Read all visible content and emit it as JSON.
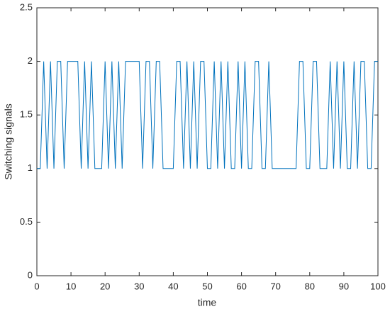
{
  "chart_data": {
    "type": "line",
    "xlabel": "time",
    "ylabel": "Switching signals",
    "x": [
      0,
      1,
      2,
      3,
      4,
      5,
      6,
      7,
      8,
      9,
      10,
      11,
      12,
      13,
      14,
      15,
      16,
      17,
      18,
      19,
      20,
      21,
      22,
      23,
      24,
      25,
      26,
      27,
      28,
      29,
      30,
      31,
      32,
      33,
      34,
      35,
      36,
      37,
      38,
      39,
      40,
      41,
      42,
      43,
      44,
      45,
      46,
      47,
      48,
      49,
      50,
      51,
      52,
      53,
      54,
      55,
      56,
      57,
      58,
      59,
      60,
      61,
      62,
      63,
      64,
      65,
      66,
      67,
      68,
      69,
      70,
      71,
      72,
      73,
      74,
      75,
      76,
      77,
      78,
      79,
      80,
      81,
      82,
      83,
      84,
      85,
      86,
      87,
      88,
      89,
      90,
      91,
      92,
      93,
      94,
      95,
      96,
      97,
      98,
      99,
      100
    ],
    "series": [
      {
        "name": "Switching signal",
        "color": "#0072bd",
        "values": [
          1,
          1,
          2,
          1,
          2,
          1,
          2,
          2,
          1,
          2,
          2,
          2,
          2,
          1,
          2,
          1,
          2,
          1,
          1,
          1,
          2,
          1,
          2,
          1,
          2,
          1,
          2,
          2,
          2,
          2,
          2,
          1,
          2,
          2,
          1,
          2,
          2,
          1,
          1,
          1,
          1,
          2,
          2,
          1,
          2,
          1,
          2,
          1,
          2,
          2,
          1,
          1,
          2,
          1,
          2,
          1,
          2,
          1,
          1,
          2,
          1,
          2,
          1,
          1,
          2,
          2,
          1,
          1,
          2,
          1,
          1,
          1,
          1,
          1,
          1,
          1,
          1,
          2,
          2,
          1,
          1,
          2,
          2,
          1,
          1,
          1,
          2,
          1,
          2,
          1,
          2,
          1,
          1,
          2,
          1,
          2,
          2,
          1,
          1,
          2,
          2
        ]
      }
    ],
    "xlim": [
      0,
      100
    ],
    "xticks": [
      0,
      10,
      20,
      30,
      40,
      50,
      60,
      70,
      80,
      90,
      100
    ],
    "ylim": [
      0,
      2.5
    ],
    "yticks": [
      0,
      0.5,
      1,
      1.5,
      2,
      2.5
    ]
  }
}
